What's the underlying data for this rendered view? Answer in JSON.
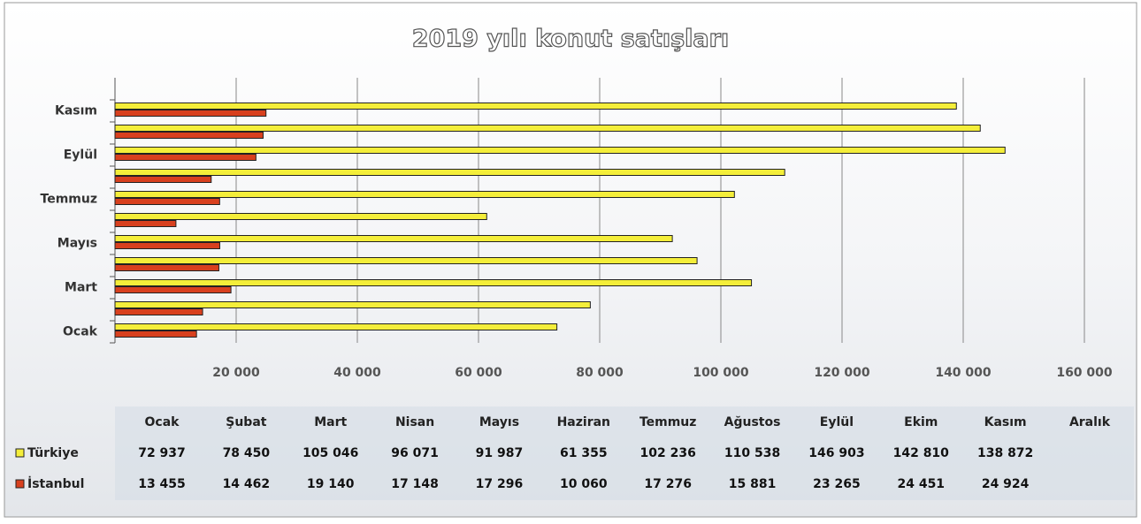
{
  "chart_data": {
    "type": "bar",
    "orientation": "horizontal",
    "title": "2019 yılı konut satışları",
    "categories": [
      "Ocak",
      "Şubat",
      "Mart",
      "Nisan",
      "Mayıs",
      "Haziran",
      "Temmuz",
      "Ağustos",
      "Eylül",
      "Ekim",
      "Kasım",
      "Aralık"
    ],
    "series": [
      {
        "name": "Türkiye",
        "color": "#f4ee3a",
        "values": [
          72937,
          78450,
          105046,
          96071,
          91987,
          61355,
          102236,
          110538,
          146903,
          142810,
          138872,
          null
        ],
        "value_labels": [
          "72 937",
          "78 450",
          "105 046",
          "96 071",
          "91 987",
          "61 355",
          "102 236",
          "110 538",
          "146 903",
          "142 810",
          "138 872",
          null
        ]
      },
      {
        "name": "İstanbul",
        "color": "#d8401e",
        "values": [
          13455,
          14462,
          19140,
          17148,
          17296,
          10060,
          17276,
          15881,
          23265,
          24451,
          24924,
          null
        ],
        "value_labels": [
          "13 455",
          "14 462",
          "19 140",
          "17 148",
          "17 296",
          "10 060",
          "17 276",
          "15 881",
          "23 265",
          "24 451",
          "24 924",
          null
        ]
      }
    ],
    "xlim": [
      0,
      160000
    ],
    "xticks": [
      {
        "value": 20000,
        "label": "20 000"
      },
      {
        "value": 40000,
        "label": "40 000"
      },
      {
        "value": 60000,
        "label": "60 000"
      },
      {
        "value": 80000,
        "label": "80 000"
      },
      {
        "value": 100000,
        "label": "100 000"
      },
      {
        "value": 120000,
        "label": "120 000"
      },
      {
        "value": 140000,
        "label": "140 000"
      },
      {
        "value": 160000,
        "label": "160 000"
      }
    ],
    "grid": true,
    "data_table": true
  }
}
